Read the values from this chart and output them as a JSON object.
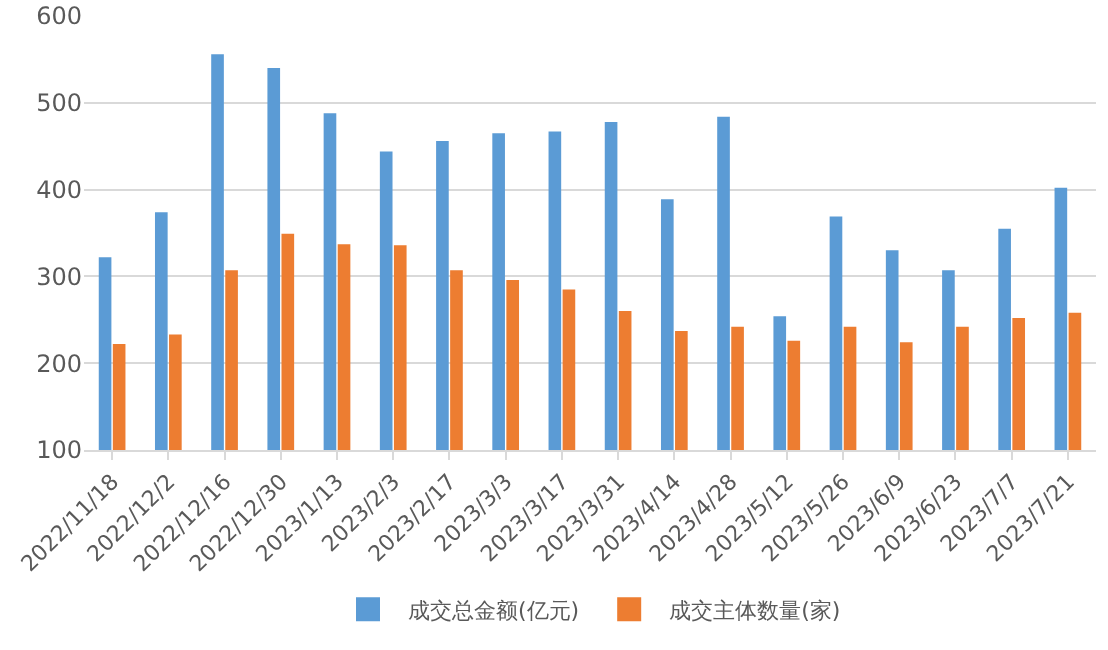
{
  "chart_data": {
    "type": "bar",
    "categories": [
      "2022/11/18",
      "2022/12/2",
      "2022/12/16",
      "2022/12/30",
      "2023/1/13",
      "2023/2/3",
      "2023/2/17",
      "2023/3/3",
      "2023/3/17",
      "2023/3/31",
      "2023/4/14",
      "2023/4/28",
      "2023/5/12",
      "2023/5/26",
      "2023/6/9",
      "2023/6/23",
      "2023/7/7",
      "2023/7/21"
    ],
    "series": [
      {
        "name": "成交总金额(亿元)",
        "color": "#5b9bd5",
        "values": [
          322,
          374,
          556,
          540,
          488,
          444,
          456,
          465,
          467,
          478,
          389,
          484,
          254,
          369,
          330,
          307,
          355,
          402
        ]
      },
      {
        "name": "成交主体数量(家)",
        "color": "#ed7d31",
        "values": [
          222,
          233,
          307,
          349,
          337,
          336,
          307,
          296,
          285,
          260,
          237,
          242,
          226,
          242,
          224,
          242,
          252,
          258
        ]
      }
    ],
    "ylim": [
      100,
      600
    ],
    "yticks": [
      100,
      200,
      300,
      400,
      500,
      600
    ],
    "grid": "y",
    "legend": "bottom"
  }
}
